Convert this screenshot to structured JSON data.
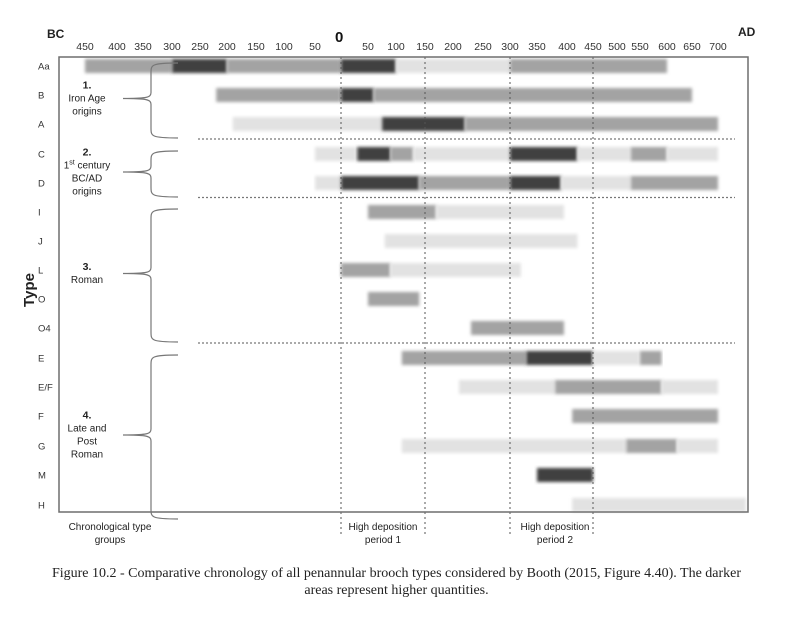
{
  "chart_data": {
    "type": "bar",
    "subtype": "timeline-range-bars",
    "title": "",
    "xlabel": "",
    "ylabel": "Type",
    "era_labels": {
      "left": "BC",
      "right": "AD",
      "zero": "0"
    },
    "x_ticks": [
      {
        "label": "450",
        "year": -450
      },
      {
        "label": "400",
        "year": -400
      },
      {
        "label": "350",
        "year": -350
      },
      {
        "label": "300",
        "year": -300
      },
      {
        "label": "250",
        "year": -250
      },
      {
        "label": "200",
        "year": -200
      },
      {
        "label": "150",
        "year": -150
      },
      {
        "label": "100",
        "year": -100
      },
      {
        "label": "50",
        "year": -50
      },
      {
        "label": "50",
        "year": 50
      },
      {
        "label": "100",
        "year": 100
      },
      {
        "label": "150",
        "year": 150
      },
      {
        "label": "200",
        "year": 200
      },
      {
        "label": "250",
        "year": 250
      },
      {
        "label": "300",
        "year": 300
      },
      {
        "label": "350",
        "year": 350
      },
      {
        "label": "400",
        "year": 400
      },
      {
        "label": "450",
        "year": 450
      },
      {
        "label": "500",
        "year": 500
      },
      {
        "label": "550",
        "year": 550
      },
      {
        "label": "600",
        "year": 600
      },
      {
        "label": "650",
        "year": 650
      },
      {
        "label": "700",
        "year": 700
      }
    ],
    "xlim": [
      -500,
      750
    ],
    "intensity_legend": {
      "light": "#e2e2e2",
      "medium": "#a3a3a3",
      "dark": "#3f3f3f"
    },
    "rows": [
      {
        "type": "Aa",
        "segments": [
          [
            -450,
            -300,
            "medium"
          ],
          [
            -300,
            -200,
            "dark"
          ],
          [
            -200,
            0,
            "medium"
          ],
          [
            0,
            100,
            "dark"
          ],
          [
            100,
            300,
            "light"
          ],
          [
            300,
            600,
            "medium"
          ]
        ]
      },
      {
        "type": "B",
        "segments": [
          [
            -220,
            0,
            "medium"
          ],
          [
            0,
            60,
            "dark"
          ],
          [
            60,
            650,
            "medium"
          ]
        ]
      },
      {
        "type": "A",
        "segments": [
          [
            -190,
            75,
            "light"
          ],
          [
            75,
            220,
            "dark"
          ],
          [
            220,
            700,
            "medium"
          ]
        ]
      },
      {
        "type": "C",
        "segments": [
          [
            -50,
            30,
            "light"
          ],
          [
            30,
            90,
            "dark"
          ],
          [
            90,
            130,
            "medium"
          ],
          [
            130,
            300,
            "light"
          ],
          [
            300,
            420,
            "dark"
          ],
          [
            420,
            530,
            "light"
          ],
          [
            530,
            600,
            "medium"
          ],
          [
            600,
            700,
            "light"
          ]
        ]
      },
      {
        "type": "D",
        "segments": [
          [
            -50,
            0,
            "light"
          ],
          [
            0,
            140,
            "dark"
          ],
          [
            140,
            300,
            "medium"
          ],
          [
            300,
            390,
            "dark"
          ],
          [
            390,
            530,
            "light"
          ],
          [
            530,
            700,
            "medium"
          ]
        ]
      },
      {
        "type": "I",
        "segments": [
          [
            50,
            170,
            "medium"
          ],
          [
            170,
            395,
            "light"
          ]
        ]
      },
      {
        "type": "J",
        "segments": [
          [
            80,
            420,
            "light"
          ]
        ]
      },
      {
        "type": "L",
        "segments": [
          [
            0,
            90,
            "medium"
          ],
          [
            90,
            320,
            "light"
          ]
        ]
      },
      {
        "type": "O",
        "segments": [
          [
            50,
            140,
            "medium"
          ]
        ]
      },
      {
        "type": "O4",
        "segments": [
          [
            230,
            395,
            "medium"
          ]
        ]
      },
      {
        "type": "E",
        "segments": [
          [
            110,
            330,
            "medium"
          ],
          [
            330,
            450,
            "dark"
          ],
          [
            450,
            550,
            "light"
          ],
          [
            550,
            590,
            "medium"
          ]
        ]
      },
      {
        "type": "E/F",
        "segments": [
          [
            210,
            380,
            "light"
          ],
          [
            380,
            590,
            "medium"
          ],
          [
            590,
            700,
            "light"
          ]
        ]
      },
      {
        "type": "F",
        "segments": [
          [
            410,
            700,
            "medium"
          ]
        ]
      },
      {
        "type": "G",
        "segments": [
          [
            110,
            520,
            "light"
          ],
          [
            520,
            620,
            "medium"
          ],
          [
            620,
            700,
            "light"
          ]
        ]
      },
      {
        "type": "M",
        "segments": [
          [
            350,
            450,
            "dark"
          ]
        ]
      },
      {
        "type": "H",
        "segments": [
          [
            410,
            750,
            "light"
          ]
        ]
      }
    ],
    "groups": [
      {
        "number": "1.",
        "lines": [
          "Iron Age",
          "origins"
        ],
        "rows": [
          "Aa",
          "B",
          "A"
        ]
      },
      {
        "number": "2.",
        "lines": [
          "1st century",
          "BC/AD",
          "origins"
        ],
        "rows": [
          "C",
          "D"
        ]
      },
      {
        "number": "3.",
        "lines": [
          "Roman"
        ],
        "rows": [
          "I",
          "J",
          "L",
          "O",
          "O4"
        ]
      },
      {
        "number": "4.",
        "lines": [
          "Late and",
          "Post",
          "Roman"
        ],
        "rows": [
          "E",
          "E/F",
          "F",
          "G",
          "M",
          "H"
        ]
      }
    ],
    "reference_lines": [
      0,
      150,
      300,
      450
    ],
    "group_separators_after": [
      "A",
      "D",
      "O4"
    ],
    "footer_labels": [
      {
        "lines": [
          "Chronological type",
          "groups"
        ]
      },
      {
        "lines": [
          "High deposition",
          "period 1"
        ]
      },
      {
        "lines": [
          "High deposition",
          "period 2"
        ]
      }
    ],
    "grid": false,
    "legend": "none"
  },
  "caption": {
    "line1": "Figure 10.2 - Comparative chronology of all penannular brooch types considered by Booth (2015, Figure 4.40). The darker",
    "line2": "areas represent higher quantities."
  }
}
